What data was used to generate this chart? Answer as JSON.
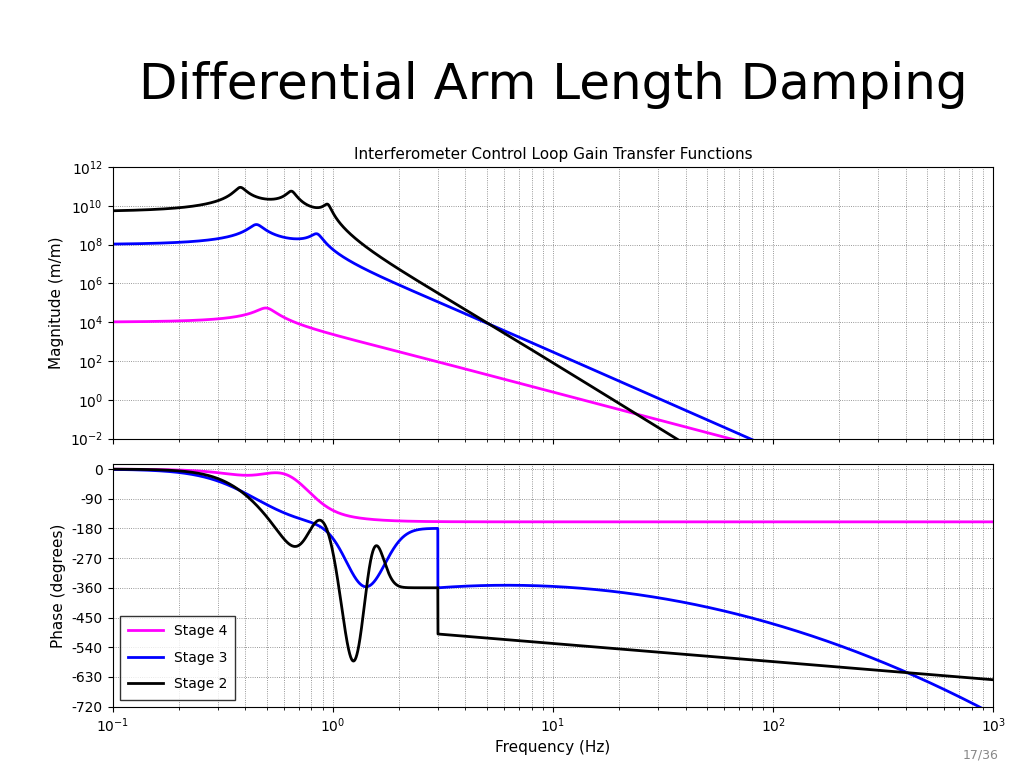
{
  "title": "Differential Arm Length Damping",
  "subplot_title": "Interferometer Control Loop Gain Transfer Functions",
  "xlabel": "Frequency (Hz)",
  "ylabel_mag": "Magnitude (m/m)",
  "ylabel_phase": "Phase (degrees)",
  "freq_range": [
    0.1,
    1000
  ],
  "mag_ylim": [
    0.01,
    1000000000000.0
  ],
  "phase_ylim": [
    -720,
    15
  ],
  "phase_yticks": [
    0,
    -90,
    -180,
    -270,
    -360,
    -450,
    -540,
    -630,
    -720
  ],
  "colors": {
    "stage4": "#FF00FF",
    "stage3": "#0000FF",
    "stage2": "#000000"
  },
  "legend_labels": [
    "Stage 4",
    "Stage 3",
    "Stage 2"
  ],
  "slide_number": "17/36",
  "background_color": "#FFFFFF"
}
